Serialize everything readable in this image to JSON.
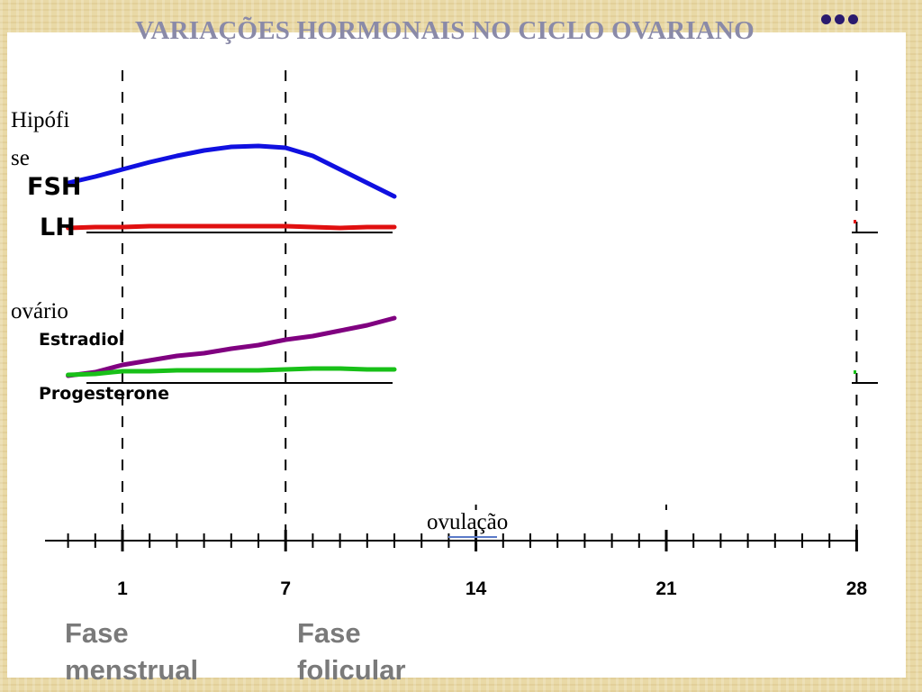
{
  "title": "VARIAÇÕES HORMONAIS NO CICLO OVARIANO",
  "labels": {
    "hipofise_line1": "Hipófi",
    "hipofise_line2": "se",
    "ovario": "ovário",
    "ovulacao": "ovulação"
  },
  "phases": {
    "menstrual_line1": "Fase",
    "menstrual_line2": "menstrual",
    "folicular_line1": "Fase",
    "folicular_line2": "folicular"
  },
  "colors": {
    "fsh": "#1010e0",
    "lh": "#e01010",
    "estradiol": "#800080",
    "progesterone": "#18c018",
    "title": "#8a8aa8",
    "phase_text": "#7a7a7a"
  },
  "chart_data": {
    "type": "line",
    "x_axis": {
      "ticks": [
        1,
        7,
        14,
        21,
        28
      ],
      "xlim": [
        -2,
        28
      ]
    },
    "dashed_markers": [
      1,
      7,
      28
    ],
    "panels": [
      {
        "name": "hipofise",
        "series": [
          {
            "name": "FSH",
            "x": [
              -1,
              0,
              1,
              2,
              3,
              4,
              5,
              6,
              7,
              8,
              9,
              10,
              11
            ],
            "values": [
              55,
              62,
              70,
              78,
              85,
              91,
              95,
              96,
              94,
              85,
              70,
              55,
              40
            ]
          },
          {
            "name": "LH",
            "x": [
              -1,
              0,
              1,
              2,
              3,
              4,
              5,
              6,
              7,
              8,
              9,
              10,
              11
            ],
            "values": [
              5,
              6,
              6,
              7,
              7,
              7,
              7,
              7,
              7,
              6,
              5,
              6,
              6
            ]
          }
        ]
      },
      {
        "name": "ovario",
        "series": [
          {
            "name": "Estradiol",
            "x": [
              -1,
              0,
              1,
              2,
              3,
              4,
              5,
              6,
              7,
              8,
              9,
              10,
              11
            ],
            "values": [
              8,
              12,
              20,
              25,
              30,
              33,
              38,
              42,
              48,
              52,
              58,
              64,
              72
            ]
          },
          {
            "name": "Progesterone",
            "x": [
              -1,
              0,
              1,
              2,
              3,
              4,
              5,
              6,
              7,
              8,
              9,
              10,
              11
            ],
            "values": [
              9,
              10,
              13,
              13,
              14,
              14,
              14,
              14,
              15,
              16,
              16,
              15,
              15
            ]
          }
        ]
      }
    ]
  }
}
